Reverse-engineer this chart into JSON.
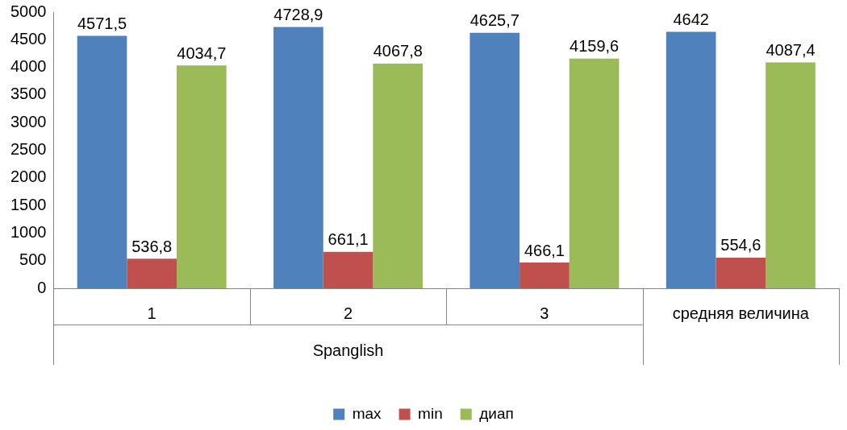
{
  "chart_data": {
    "type": "bar",
    "categories": [
      "1",
      "2",
      "3",
      "средняя величина"
    ],
    "annotations": [
      "Spanglish"
    ],
    "series": [
      {
        "name": "max",
        "color": "#4f81bd",
        "values": [
          4571.5,
          4728.9,
          4625.7,
          4642
        ],
        "value_labels": [
          "4571,5",
          "4728,9",
          "4625,7",
          "4642"
        ]
      },
      {
        "name": "min",
        "color": "#c0504d",
        "values": [
          536.8,
          661.1,
          466.1,
          554.6
        ],
        "value_labels": [
          "536,8",
          "661,1",
          "466,1",
          "554,6"
        ]
      },
      {
        "name": "диап",
        "color": "#9bbb59",
        "values": [
          4034.7,
          4067.8,
          4159.6,
          4087.4
        ],
        "value_labels": [
          "4034,7",
          "4067,8",
          "4159,6",
          "4087,4"
        ]
      }
    ],
    "ylim": [
      0,
      5000
    ],
    "yticks": [
      0,
      500,
      1000,
      1500,
      2000,
      2500,
      3000,
      3500,
      4000,
      4500,
      5000
    ],
    "grid": false,
    "legend": "bottom"
  }
}
